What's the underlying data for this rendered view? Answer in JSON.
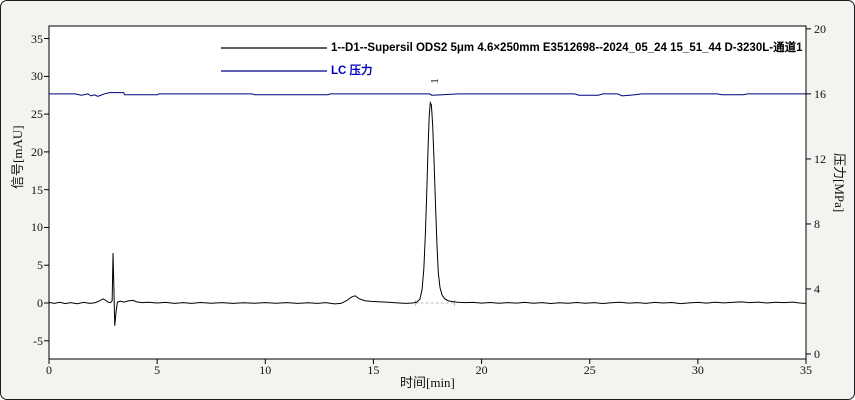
{
  "frame": {
    "bg": "#f3f3f0",
    "border_color": "#1c1c1c",
    "plot_bg": "#ffffff",
    "plot_border": "#000000"
  },
  "legend": {
    "series1": {
      "label": "1--D1--Supersil ODS2 5μm 4.6×250mm E3512698--2024_05_24 15_51_44 D-3230L-通道1",
      "text_color": "#000000",
      "line_color": "#000000"
    },
    "series2": {
      "label": "LC 压力",
      "text_color": "#0000bb",
      "line_color": "#00007d"
    }
  },
  "chart_data": {
    "type": "line",
    "title": "",
    "xlabel": "时间[min]",
    "ylabel_left": "信号[mAU]",
    "ylabel_right": "压力[MPa]",
    "xlim": [
      0,
      35
    ],
    "ylim_left": [
      -7.41,
      36.66
    ],
    "ylim_right": [
      -0.31,
      20.18
    ],
    "x_ticks": [
      0,
      5,
      10,
      15,
      20,
      25,
      30,
      35
    ],
    "y_left_ticks": [
      -5,
      0,
      5,
      10,
      15,
      20,
      25,
      30,
      35
    ],
    "y_right_ticks": [
      0,
      4,
      8,
      12,
      16,
      20
    ],
    "grid": false,
    "legend_position": "top-center",
    "peak_label": {
      "text": "1",
      "time": 17.95,
      "value": 29.3
    },
    "integration_baseline": {
      "from": 16.95,
      "to": 18.75,
      "value": 0,
      "color": "#bcbcbc"
    },
    "series": [
      {
        "name": "signal 1--D1 通道1",
        "axis": "left",
        "color": "#000000",
        "points": [
          [
            0,
            0.08
          ],
          [
            0.25,
            -0.05
          ],
          [
            0.5,
            0.1
          ],
          [
            0.75,
            -0.08
          ],
          [
            1.0,
            0.05
          ],
          [
            1.3,
            -0.1
          ],
          [
            1.6,
            0.08
          ],
          [
            1.9,
            -0.05
          ],
          [
            2.15,
            0.05
          ],
          [
            2.35,
            0.3
          ],
          [
            2.5,
            0.55
          ],
          [
            2.62,
            0.35
          ],
          [
            2.75,
            0.08
          ],
          [
            2.85,
            0.05
          ],
          [
            2.92,
            0.3
          ],
          [
            2.96,
            6.6
          ],
          [
            3.0,
            2.0
          ],
          [
            3.04,
            -3.0
          ],
          [
            3.1,
            -1.2
          ],
          [
            3.16,
            0.1
          ],
          [
            3.3,
            0.25
          ],
          [
            3.45,
            0.12
          ],
          [
            3.7,
            0.3
          ],
          [
            3.9,
            0.35
          ],
          [
            4.05,
            0.15
          ],
          [
            4.3,
            0.05
          ],
          [
            4.6,
            0.1
          ],
          [
            5.0,
            0.0
          ],
          [
            5.4,
            0.08
          ],
          [
            5.8,
            -0.05
          ],
          [
            6.2,
            0.05
          ],
          [
            6.6,
            -0.05
          ],
          [
            7.0,
            0.06
          ],
          [
            7.5,
            -0.04
          ],
          [
            8.0,
            0.05
          ],
          [
            8.5,
            -0.05
          ],
          [
            9.0,
            0.04
          ],
          [
            9.5,
            -0.04
          ],
          [
            10.0,
            0.05
          ],
          [
            10.5,
            -0.03
          ],
          [
            11.0,
            0.05
          ],
          [
            11.5,
            -0.05
          ],
          [
            12.0,
            0.04
          ],
          [
            12.4,
            -0.05
          ],
          [
            12.8,
            0.05
          ],
          [
            13.2,
            -0.12
          ],
          [
            13.5,
            -0.05
          ],
          [
            13.75,
            0.3
          ],
          [
            14.0,
            0.8
          ],
          [
            14.15,
            0.95
          ],
          [
            14.35,
            0.55
          ],
          [
            14.6,
            0.3
          ],
          [
            14.9,
            0.22
          ],
          [
            15.3,
            0.15
          ],
          [
            15.7,
            0.1
          ],
          [
            16.1,
            0.02
          ],
          [
            16.5,
            -0.05
          ],
          [
            16.8,
            0.0
          ],
          [
            17.0,
            0.1
          ],
          [
            17.15,
            0.5
          ],
          [
            17.25,
            1.8
          ],
          [
            17.33,
            4.5
          ],
          [
            17.4,
            9.0
          ],
          [
            17.47,
            15.0
          ],
          [
            17.53,
            21.0
          ],
          [
            17.58,
            24.8
          ],
          [
            17.63,
            26.5
          ],
          [
            17.68,
            26.2
          ],
          [
            17.74,
            23.5
          ],
          [
            17.8,
            19.0
          ],
          [
            17.87,
            13.0
          ],
          [
            17.94,
            7.5
          ],
          [
            18.0,
            4.0
          ],
          [
            18.08,
            2.0
          ],
          [
            18.18,
            1.0
          ],
          [
            18.3,
            0.55
          ],
          [
            18.45,
            0.3
          ],
          [
            18.65,
            0.18
          ],
          [
            18.9,
            0.1
          ],
          [
            19.2,
            0.05
          ],
          [
            19.6,
            0.08
          ],
          [
            20.0,
            -0.02
          ],
          [
            20.4,
            0.06
          ],
          [
            20.8,
            -0.04
          ],
          [
            21.2,
            0.05
          ],
          [
            21.6,
            -0.02
          ],
          [
            22.0,
            0.08
          ],
          [
            22.4,
            -0.03
          ],
          [
            22.8,
            0.05
          ],
          [
            23.2,
            -0.06
          ],
          [
            23.6,
            0.04
          ],
          [
            24.0,
            -0.03
          ],
          [
            24.4,
            0.06
          ],
          [
            24.8,
            -0.04
          ],
          [
            25.2,
            0.05
          ],
          [
            25.6,
            -0.06
          ],
          [
            26.0,
            0.03
          ],
          [
            26.4,
            0.1
          ],
          [
            26.8,
            -0.02
          ],
          [
            27.2,
            0.05
          ],
          [
            27.6,
            -0.05
          ],
          [
            28.0,
            0.08
          ],
          [
            28.4,
            0.0
          ],
          [
            28.8,
            0.06
          ],
          [
            29.2,
            -0.08
          ],
          [
            29.6,
            0.02
          ],
          [
            30.0,
            0.08
          ],
          [
            30.4,
            -0.02
          ],
          [
            30.8,
            0.1
          ],
          [
            31.2,
            0.02
          ],
          [
            31.6,
            0.08
          ],
          [
            32.0,
            0.15
          ],
          [
            32.4,
            0.05
          ],
          [
            32.8,
            0.12
          ],
          [
            33.2,
            0.0
          ],
          [
            33.6,
            0.1
          ],
          [
            34.0,
            0.05
          ],
          [
            34.4,
            0.12
          ],
          [
            34.7,
            0.0
          ],
          [
            35.0,
            -0.05
          ]
        ]
      },
      {
        "name": "LC pressure",
        "axis": "right",
        "color": "#00007d",
        "points": [
          [
            0,
            16.0
          ],
          [
            1.2,
            16.0
          ],
          [
            1.5,
            15.92
          ],
          [
            1.8,
            16.0
          ],
          [
            1.95,
            15.88
          ],
          [
            2.1,
            15.95
          ],
          [
            2.25,
            15.85
          ],
          [
            2.4,
            15.92
          ],
          [
            2.55,
            16.0
          ],
          [
            2.8,
            16.08
          ],
          [
            3.2,
            16.08
          ],
          [
            3.45,
            16.08
          ],
          [
            3.5,
            15.95
          ],
          [
            5.0,
            15.95
          ],
          [
            5.1,
            16.0
          ],
          [
            9.4,
            16.0
          ],
          [
            9.5,
            15.95
          ],
          [
            12.9,
            15.95
          ],
          [
            13.0,
            16.0
          ],
          [
            17.6,
            16.0
          ],
          [
            17.7,
            15.92
          ],
          [
            18.2,
            15.95
          ],
          [
            18.9,
            16.0
          ],
          [
            24.3,
            16.0
          ],
          [
            24.5,
            15.92
          ],
          [
            25.4,
            15.92
          ],
          [
            25.6,
            16.0
          ],
          [
            26.3,
            16.0
          ],
          [
            26.5,
            15.88
          ],
          [
            27.1,
            15.95
          ],
          [
            27.4,
            16.0
          ],
          [
            30.9,
            16.0
          ],
          [
            31.1,
            15.95
          ],
          [
            32.1,
            15.95
          ],
          [
            32.3,
            16.0
          ],
          [
            35,
            16.0
          ]
        ]
      }
    ]
  }
}
